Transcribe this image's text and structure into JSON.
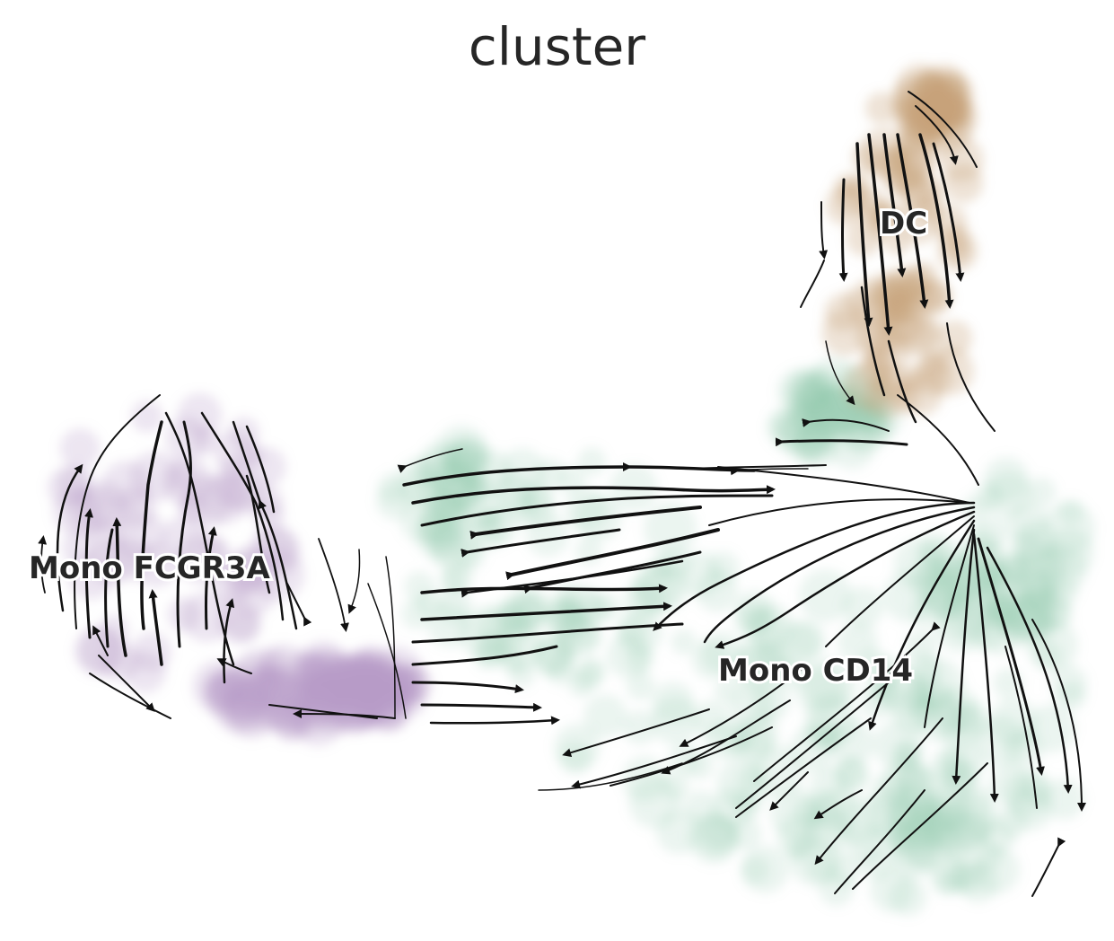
{
  "title": "cluster",
  "colors": {
    "DC": "#c8a27c",
    "Mono CD14": "#8fc9ae",
    "Mono FCGR3A": "#b89ac8",
    "stream": "#111111"
  },
  "clusters": [
    {
      "name": "DC"
    },
    {
      "name": "Mono CD14"
    },
    {
      "name": "Mono FCGR3A"
    }
  ],
  "labels": {
    "dc": "DC",
    "mono_cd14": "Mono CD14",
    "mono_fcgr3a": "Mono FCGR3A"
  }
}
